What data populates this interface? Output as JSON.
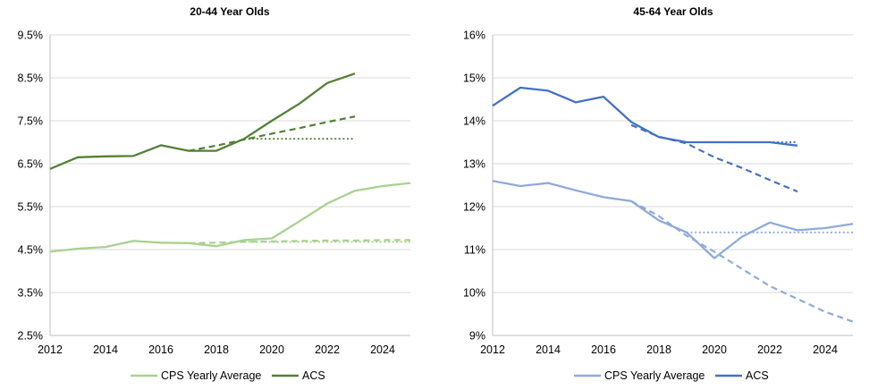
{
  "page": {
    "background": "#ffffff",
    "description_colors": {
      "cps_green": "#a9d18e",
      "acs_green": "#538135",
      "cps_blue": "#8faadc",
      "acs_blue": "#4472c4",
      "gridline": "#d9d9d9",
      "axis_line": "#bfbfbf",
      "text": "#000000"
    }
  },
  "chart_data": [
    {
      "type": "line",
      "title": "20-44 Year Olds",
      "xlabel": "",
      "ylabel": "",
      "xlim": [
        2012,
        2025
      ],
      "ylim": [
        2.5,
        9.5
      ],
      "grid": true,
      "legend_position": "bottom",
      "x_ticks": [
        "2012",
        "2014",
        "2016",
        "2018",
        "2020",
        "2022",
        "2024"
      ],
      "x_tick_years": [
        2012,
        2014,
        2016,
        2018,
        2020,
        2022,
        2024
      ],
      "y_ticks": [
        "9.5%",
        "8.5%",
        "7.5%",
        "6.5%",
        "5.5%",
        "4.5%",
        "3.5%",
        "2.5%"
      ],
      "y_tick_values": [
        9.5,
        8.5,
        7.5,
        6.5,
        5.5,
        4.5,
        3.5,
        2.5
      ],
      "legend": [
        {
          "label": "CPS Yearly Average",
          "color": "#a9d18e"
        },
        {
          "label": "ACS",
          "color": "#538135"
        }
      ],
      "series": [
        {
          "name": "CPS Yearly Average (flat projection, dotted)",
          "style": "dotted",
          "color": "#a9d18e",
          "x": [
            2019,
            2025
          ],
          "y": [
            4.68,
            4.68
          ]
        },
        {
          "name": "CPS Yearly Average (trend projection, dashed)",
          "style": "dashed",
          "color": "#a9d18e",
          "x": [
            2017,
            2018,
            2019,
            2020,
            2021,
            2022,
            2023,
            2024,
            2025
          ],
          "y": [
            4.65,
            4.66,
            4.68,
            4.69,
            4.7,
            4.71,
            4.71,
            4.72,
            4.72
          ]
        },
        {
          "name": "ACS (flat projection, dotted)",
          "style": "dotted",
          "color": "#538135",
          "x": [
            2019,
            2023
          ],
          "y": [
            7.08,
            7.08
          ]
        },
        {
          "name": "ACS (trend projection, dashed)",
          "style": "dashed",
          "color": "#538135",
          "x": [
            2017,
            2018,
            2019,
            2020,
            2021,
            2022,
            2023
          ],
          "y": [
            6.8,
            6.92,
            7.06,
            7.2,
            7.33,
            7.47,
            7.6
          ]
        },
        {
          "name": "CPS Yearly Average",
          "style": "solid",
          "color": "#a9d18e",
          "x": [
            2012,
            2013,
            2014,
            2015,
            2016,
            2017,
            2018,
            2019,
            2020,
            2021,
            2022,
            2023,
            2024,
            2025
          ],
          "y": [
            4.45,
            4.52,
            4.56,
            4.7,
            4.66,
            4.65,
            4.58,
            4.72,
            4.76,
            5.16,
            5.57,
            5.87,
            5.98,
            6.05
          ]
        },
        {
          "name": "ACS",
          "style": "solid",
          "color": "#538135",
          "x": [
            2012,
            2013,
            2014,
            2015,
            2016,
            2017,
            2018,
            2019,
            2020,
            2021,
            2022,
            2023
          ],
          "y": [
            6.38,
            6.65,
            6.67,
            6.68,
            6.93,
            6.8,
            6.8,
            7.08,
            7.5,
            7.9,
            8.38,
            8.6
          ]
        }
      ]
    },
    {
      "type": "line",
      "title": "45-64 Year Olds",
      "xlabel": "",
      "ylabel": "",
      "xlim": [
        2012,
        2025
      ],
      "ylim": [
        9,
        16
      ],
      "grid": true,
      "legend_position": "bottom",
      "x_ticks": [
        "2012",
        "2014",
        "2016",
        "2018",
        "2020",
        "2022",
        "2024"
      ],
      "x_tick_years": [
        2012,
        2014,
        2016,
        2018,
        2020,
        2022,
        2024
      ],
      "y_ticks": [
        "16%",
        "15%",
        "14%",
        "13%",
        "12%",
        "11%",
        "10%",
        "9%"
      ],
      "y_tick_values": [
        16,
        15,
        14,
        13,
        12,
        11,
        10,
        9
      ],
      "legend": [
        {
          "label": "CPS Yearly Average",
          "color": "#8faadc"
        },
        {
          "label": "ACS",
          "color": "#4472c4"
        }
      ],
      "series": [
        {
          "name": "CPS Yearly Average (flat projection, dotted)",
          "style": "dotted",
          "color": "#8faadc",
          "x": [
            2019,
            2025
          ],
          "y": [
            11.4,
            11.4
          ]
        },
        {
          "name": "CPS Yearly Average (trend projection, dashed)",
          "style": "dashed",
          "color": "#8faadc",
          "x": [
            2017,
            2018,
            2019,
            2020,
            2021,
            2022,
            2023,
            2024,
            2025
          ],
          "y": [
            12.13,
            11.78,
            11.32,
            10.95,
            10.55,
            10.15,
            9.85,
            9.55,
            9.32
          ]
        },
        {
          "name": "ACS (flat projection, dotted)",
          "style": "dotted",
          "color": "#4472c4",
          "x": [
            2019,
            2023
          ],
          "y": [
            13.5,
            13.5
          ]
        },
        {
          "name": "ACS (trend projection, dashed)",
          "style": "dashed",
          "color": "#4472c4",
          "x": [
            2017,
            2018,
            2019,
            2020,
            2021,
            2022,
            2023
          ],
          "y": [
            13.9,
            13.63,
            13.47,
            13.15,
            12.9,
            12.62,
            12.35
          ]
        },
        {
          "name": "CPS Yearly Average",
          "style": "solid",
          "color": "#8faadc",
          "x": [
            2012,
            2013,
            2014,
            2015,
            2016,
            2017,
            2018,
            2019,
            2020,
            2021,
            2022,
            2023,
            2024,
            2025
          ],
          "y": [
            12.6,
            12.48,
            12.55,
            12.38,
            12.22,
            12.13,
            11.68,
            11.4,
            10.8,
            11.3,
            11.63,
            11.45,
            11.5,
            11.6
          ]
        },
        {
          "name": "ACS",
          "style": "solid",
          "color": "#4472c4",
          "x": [
            2012,
            2013,
            2014,
            2015,
            2016,
            2017,
            2018,
            2019,
            2020,
            2021,
            2022,
            2023
          ],
          "y": [
            14.35,
            14.77,
            14.7,
            14.43,
            14.56,
            13.97,
            13.62,
            13.5,
            13.5,
            13.5,
            13.5,
            13.42
          ]
        }
      ]
    }
  ]
}
